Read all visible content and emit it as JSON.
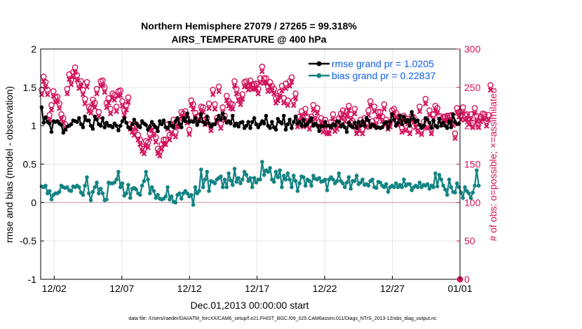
{
  "chart_data": {
    "type": "line",
    "title_line1": "Northern Hemisphere 27079 / 27265 = 99.318%",
    "title_line2": "AIRS_TEMPERATURE @ 400 hPa",
    "xlabel": "Dec.01,2013 00:00:00 start",
    "ylabel_left": "rmse and bias (model - observation)",
    "ylabel_right": "# of obs: o=possible; ×=assimilated",
    "footer": "data file: /Users/raeder/DAI/ATM_forcXX/CAM6_setup/f.e21.FHIST_BGC.f09_025.CAM6assim.011/Diags_NTrS_2013-12/obs_diag_output.nc",
    "x_range_days": [
      0.5,
      31.5
    ],
    "x_ticks": [
      {
        "value": 1.5,
        "label": "12/02"
      },
      {
        "value": 6.5,
        "label": "12/07"
      },
      {
        "value": 11.5,
        "label": "12/12"
      },
      {
        "value": 16.5,
        "label": "12/17"
      },
      {
        "value": 21.5,
        "label": "12/22"
      },
      {
        "value": 26.5,
        "label": "12/27"
      },
      {
        "value": 31.5,
        "label": "01/01"
      }
    ],
    "ylim_left": [
      -1,
      2
    ],
    "y_ticks_left": [
      "2",
      "1.5",
      "1",
      "0.5",
      "0",
      "-0.5",
      "-1"
    ],
    "ylim_right": [
      0,
      300
    ],
    "y_ticks_right": [
      "300",
      "250",
      "200",
      "150",
      "100",
      "50",
      "0"
    ],
    "grid": true,
    "legend_position": "top-right",
    "colors": {
      "rmse": "#000000",
      "bias": "#138383",
      "obs": "#d1115a",
      "zero_line": "#c9a0a8",
      "grid": "#e6e6e6"
    },
    "series": [
      {
        "name": "rmse grand pr = 1.0205",
        "key": "rmse",
        "values": [
          1.24,
          1.04,
          1.11,
          1.05,
          1.03,
          0.92,
          1.06,
          1.05,
          1.06,
          1.03,
          1.01,
          0.91,
          0.95,
          0.99,
          1.0,
          1.02,
          1.07,
          1.06,
          1.05,
          1.1,
          1.02,
          0.98,
          1.12,
          1.07,
          1.07,
          1.0,
          0.96,
          1.12,
          1.08,
          1.02,
          1.0,
          1.1,
          0.98,
          1.04,
          1.0,
          1.0,
          0.98,
          1.03,
          1.0,
          0.94,
          1.0,
          1.06,
          1.1,
          1.04,
          0.98,
          0.96,
          1.02,
          1.08,
          1.03,
          1.0,
          0.98,
          1.06,
          1.03,
          1.01,
          0.95,
          0.99,
          1.05,
          1.01,
          0.98,
          0.93,
          1.06,
          1.02,
          1.07,
          0.98,
          0.97,
          1.04,
          1.0,
          0.98,
          1.06,
          1.1,
          1.02,
          0.98,
          1.1,
          1.06,
          1.16,
          1.05,
          1.06,
          1.05,
          1.1,
          1.01,
          1.06,
          1.15,
          1.05,
          1.02,
          1.12,
          1.03,
          0.99,
          1.02,
          1.02,
          1.08,
          1.13,
          1.08,
          1.16,
          1.1,
          1.04,
          1.06,
          1.03,
          1.13,
          1.0,
          1.03,
          0.99,
          1.04,
          1.05,
          0.97,
          1.0,
          1.05,
          0.97,
          1.05,
          1.1,
          1.02,
          0.98,
          1.02,
          1.06,
          1.03,
          1.13,
          1.0,
          0.97,
          1.05,
          0.98,
          0.95,
          1.09,
          1.05,
          1.03,
          1.13,
          0.95,
          1.02,
          1.08,
          0.97,
          1.05,
          1.12,
          1.03,
          1.05,
          1.0,
          1.08,
          1.0,
          1.02,
          1.06,
          1.1,
          1.0,
          1.03,
          1.0,
          0.93,
          1.0,
          0.99,
          1.05,
          1.0,
          1.0,
          0.98,
          1.02,
          1.0,
          1.06,
          1.05,
          0.99,
          1.02,
          0.98,
          0.92,
          1.04,
          1.0,
          0.98,
          1.04,
          0.97,
          1.05,
          1.0,
          1.06,
          1.0,
          1.1,
          1.07,
          0.98,
          1.02,
          1.0,
          0.97,
          0.98,
          0.97,
          0.98,
          1.03,
          1.05,
          0.97,
          1.05,
          1.15,
          1.08,
          1.0,
          1.04,
          1.13,
          1.02,
          1.12,
          1.05,
          1.08,
          1.0,
          1.18,
          1.09,
          1.05,
          1.07,
          1.01,
          0.97,
          1.0,
          1.1,
          1.08,
          1.04,
          0.97,
          1.07,
          1.0,
          0.98,
          1.09,
          1.0,
          1.04,
          1.0,
          0.97,
          1.06,
          0.98,
          1.15,
          1.05,
          1.02,
          1.03
        ]
      },
      {
        "name": "bias grand pr = 0.22837",
        "key": "bias",
        "values": [
          0.21,
          0.2,
          0.22,
          0.12,
          0.15,
          0.04,
          0.1,
          0.12,
          0.12,
          0.14,
          0.22,
          0.2,
          0.19,
          0.2,
          0.16,
          0.15,
          0.21,
          0.2,
          0.22,
          0.2,
          0.13,
          0.1,
          0.22,
          0.33,
          0.12,
          0.03,
          0.14,
          0.2,
          0.26,
          0.12,
          0.18,
          0.12,
          0.03,
          0.04,
          0.26,
          0.25,
          0.25,
          0.26,
          0.3,
          0.4,
          0.2,
          0.25,
          0.09,
          0.12,
          0.23,
          0.06,
          0.18,
          0.19,
          0.17,
          0.12,
          0.1,
          0.22,
          0.28,
          0.4,
          0.3,
          0.12,
          0.2,
          0.15,
          0.06,
          0.1,
          0.05,
          0.04,
          0.05,
          0.08,
          0.2,
          0.04,
          0.08,
          0.01,
          0.0,
          0.1,
          0.12,
          0.05,
          0.12,
          0.15,
          0.12,
          0.08,
          0.1,
          -0.03,
          0.2,
          0.12,
          0.15,
          0.43,
          0.2,
          0.3,
          0.4,
          0.15,
          0.28,
          0.27,
          0.25,
          0.3,
          0.32,
          0.34,
          0.2,
          0.3,
          0.2,
          0.38,
          0.29,
          0.23,
          0.44,
          0.27,
          0.32,
          0.25,
          0.3,
          0.4,
          0.36,
          0.28,
          0.32,
          0.2,
          0.32,
          0.26,
          0.3,
          0.3,
          0.53,
          0.36,
          0.42,
          0.4,
          0.45,
          0.3,
          0.27,
          0.4,
          0.33,
          0.42,
          0.2,
          0.35,
          0.3,
          0.38,
          0.3,
          0.2,
          0.35,
          0.28,
          0.15,
          0.25,
          0.34,
          0.33,
          0.22,
          0.3,
          0.28,
          0.22,
          0.35,
          0.31,
          0.3,
          0.32,
          0.27,
          0.28,
          0.3,
          0.16,
          0.3,
          0.33,
          0.3,
          0.25,
          0.28,
          0.38,
          0.28,
          0.25,
          0.2,
          0.26,
          0.33,
          0.18,
          0.28,
          0.28,
          0.35,
          0.24,
          0.26,
          0.3,
          0.23,
          0.24,
          0.22,
          0.28,
          0.3,
          0.2,
          0.19,
          0.27,
          0.26,
          0.22,
          0.2,
          0.24,
          0.14,
          0.2,
          0.22,
          0.2,
          0.25,
          0.2,
          0.23,
          0.2,
          0.3,
          0.22,
          0.24,
          0.24,
          0.16,
          0.2,
          0.22,
          0.2,
          0.26,
          0.2,
          0.23,
          0.22,
          0.24,
          0.18,
          0.22,
          0.2,
          0.38,
          0.21,
          0.36,
          0.3,
          0.22,
          0.17,
          0.1,
          0.3,
          0.2,
          0.14,
          0.13,
          0.25,
          0.2,
          0.13,
          0.06,
          0.2,
          0.15,
          0.12,
          0.06,
          0.13,
          0.22,
          0.42,
          0.22
        ]
      },
      {
        "name": "# of obs possible / assimilated",
        "key": "obs",
        "values": [
          247,
          264,
          257,
          247,
          214,
          227,
          245,
          237,
          238,
          229,
          215,
          210,
          202,
          248,
          267,
          260,
          270,
          276,
          266,
          255,
          258,
          247,
          235,
          257,
          225,
          223,
          234,
          230,
          248,
          218,
          258,
          259,
          250,
          230,
          236,
          222,
          242,
          240,
          225,
          245,
          246,
          232,
          220,
          227,
          237,
          202,
          198,
          194,
          202,
          188,
          182,
          173,
          170,
          180,
          178,
          190,
          200,
          194,
          185,
          170,
          167,
          176,
          182,
          182,
          202,
          188,
          196,
          208,
          192,
          205,
          205,
          218,
          216,
          219,
          210,
          195,
          233,
          228,
          217,
          212,
          213,
          225,
          224,
          208,
          210,
          229,
          200,
          247,
          228,
          210,
          251,
          203,
          224,
          213,
          239,
          232,
          229,
          228,
          258,
          248,
          239,
          234,
          241,
          257,
          258,
          253,
          259,
          254,
          254,
          255,
          248,
          262,
          277,
          262,
          262,
          251,
          257,
          252,
          248,
          236,
          239,
          244,
          252,
          236,
          255,
          233,
          258,
          263,
          233,
          242,
          205,
          212,
          219,
          205,
          222,
          212,
          202,
          212,
          227,
          215,
          223,
          205,
          210,
          198,
          208,
          196,
          196,
          205,
          215,
          199,
          202,
          210,
          216,
          220,
          212,
          219,
          226,
          215,
          206,
          222,
          196,
          200,
          208,
          196,
          210,
          204,
          220,
          232,
          206,
          225,
          208,
          218,
          218,
          212,
          228,
          208,
          202,
          205,
          220,
          222,
          217,
          207,
          212,
          198,
          213,
          200,
          209,
          196,
          213,
          211,
          204,
          198,
          225,
          195,
          205,
          235,
          203,
          220,
          196,
          215,
          226,
          223,
          213,
          208,
          212,
          212,
          213,
          213,
          214,
          207,
          190,
          223,
          218,
          214,
          224,
          214,
          215,
          208,
          215,
          204,
          223,
          213,
          204,
          212,
          216,
          215,
          206,
          214,
          253
        ]
      }
    ],
    "obs_marker_styles": [
      "possible (o)",
      "assimilated (×)"
    ]
  }
}
